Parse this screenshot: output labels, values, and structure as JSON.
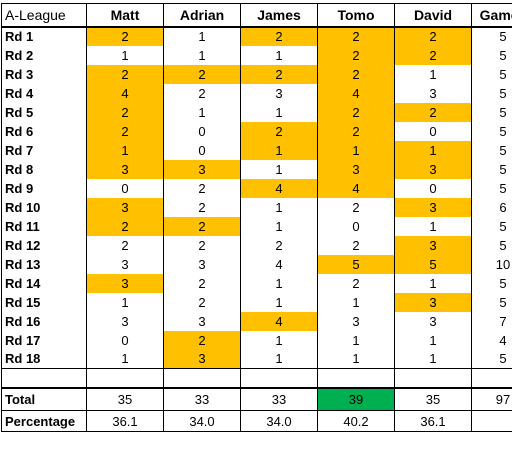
{
  "sheet": {
    "corner_label": "A-League",
    "players": [
      "Matt",
      "Adrian",
      "James",
      "Tomo",
      "David"
    ],
    "games_header": "Games",
    "highlight_color": "#ffc000",
    "best_color": "#00b050",
    "rounds": [
      {
        "label": "Rd 1",
        "scores": [
          "2",
          "1",
          "2",
          "2",
          "2"
        ],
        "hl": [
          true,
          false,
          true,
          true,
          true
        ],
        "games": "5"
      },
      {
        "label": "Rd 2",
        "scores": [
          "1",
          "1",
          "1",
          "2",
          "2"
        ],
        "hl": [
          false,
          false,
          false,
          true,
          true
        ],
        "games": "5"
      },
      {
        "label": "Rd 3",
        "scores": [
          "2",
          "2",
          "2",
          "2",
          "1"
        ],
        "hl": [
          true,
          true,
          true,
          true,
          false
        ],
        "games": "5"
      },
      {
        "label": "Rd 4",
        "scores": [
          "4",
          "2",
          "3",
          "4",
          "3"
        ],
        "hl": [
          true,
          false,
          false,
          true,
          false
        ],
        "games": "5"
      },
      {
        "label": "Rd 5",
        "scores": [
          "2",
          "1",
          "1",
          "2",
          "2"
        ],
        "hl": [
          true,
          false,
          false,
          true,
          true
        ],
        "games": "5"
      },
      {
        "label": "Rd 6",
        "scores": [
          "2",
          "0",
          "2",
          "2",
          "0"
        ],
        "hl": [
          true,
          false,
          true,
          true,
          false
        ],
        "games": "5"
      },
      {
        "label": "Rd 7",
        "scores": [
          "1",
          "0",
          "1",
          "1",
          "1"
        ],
        "hl": [
          true,
          false,
          true,
          true,
          true
        ],
        "games": "5"
      },
      {
        "label": "Rd 8",
        "scores": [
          "3",
          "3",
          "1",
          "3",
          "3"
        ],
        "hl": [
          true,
          true,
          false,
          true,
          true
        ],
        "games": "5"
      },
      {
        "label": "Rd 9",
        "scores": [
          "0",
          "2",
          "4",
          "4",
          "0"
        ],
        "hl": [
          false,
          false,
          true,
          true,
          false
        ],
        "games": "5"
      },
      {
        "label": "Rd 10",
        "scores": [
          "3",
          "2",
          "1",
          "2",
          "3"
        ],
        "hl": [
          true,
          false,
          false,
          false,
          true
        ],
        "games": "6"
      },
      {
        "label": "Rd 11",
        "scores": [
          "2",
          "2",
          "1",
          "0",
          "1"
        ],
        "hl": [
          true,
          true,
          false,
          false,
          false
        ],
        "games": "5"
      },
      {
        "label": "Rd 12",
        "scores": [
          "2",
          "2",
          "2",
          "2",
          "3"
        ],
        "hl": [
          false,
          false,
          false,
          false,
          true
        ],
        "games": "5"
      },
      {
        "label": "Rd 13",
        "scores": [
          "3",
          "3",
          "4",
          "5",
          "5"
        ],
        "hl": [
          false,
          false,
          false,
          true,
          true
        ],
        "games": "10"
      },
      {
        "label": "Rd 14",
        "scores": [
          "3",
          "2",
          "1",
          "2",
          "1"
        ],
        "hl": [
          true,
          false,
          false,
          false,
          false
        ],
        "games": "5"
      },
      {
        "label": "Rd 15",
        "scores": [
          "1",
          "2",
          "1",
          "1",
          "3"
        ],
        "hl": [
          false,
          false,
          false,
          false,
          true
        ],
        "games": "5"
      },
      {
        "label": "Rd 16",
        "scores": [
          "3",
          "3",
          "4",
          "3",
          "3"
        ],
        "hl": [
          false,
          false,
          true,
          false,
          false
        ],
        "games": "7"
      },
      {
        "label": "Rd 17",
        "scores": [
          "0",
          "2",
          "1",
          "1",
          "1"
        ],
        "hl": [
          false,
          true,
          false,
          false,
          false
        ],
        "games": "4"
      },
      {
        "label": "Rd 18",
        "scores": [
          "1",
          "3",
          "1",
          "1",
          "1"
        ],
        "hl": [
          false,
          true,
          false,
          false,
          false
        ],
        "games": "5"
      }
    ],
    "total": {
      "label": "Total",
      "values": [
        "35",
        "33",
        "33",
        "39",
        "35"
      ],
      "best": [
        false,
        false,
        false,
        true,
        false
      ],
      "games": "97"
    },
    "percentage": {
      "label": "Percentage",
      "values": [
        "36.1",
        "34.0",
        "34.0",
        "40.2",
        "36.1"
      ]
    }
  }
}
